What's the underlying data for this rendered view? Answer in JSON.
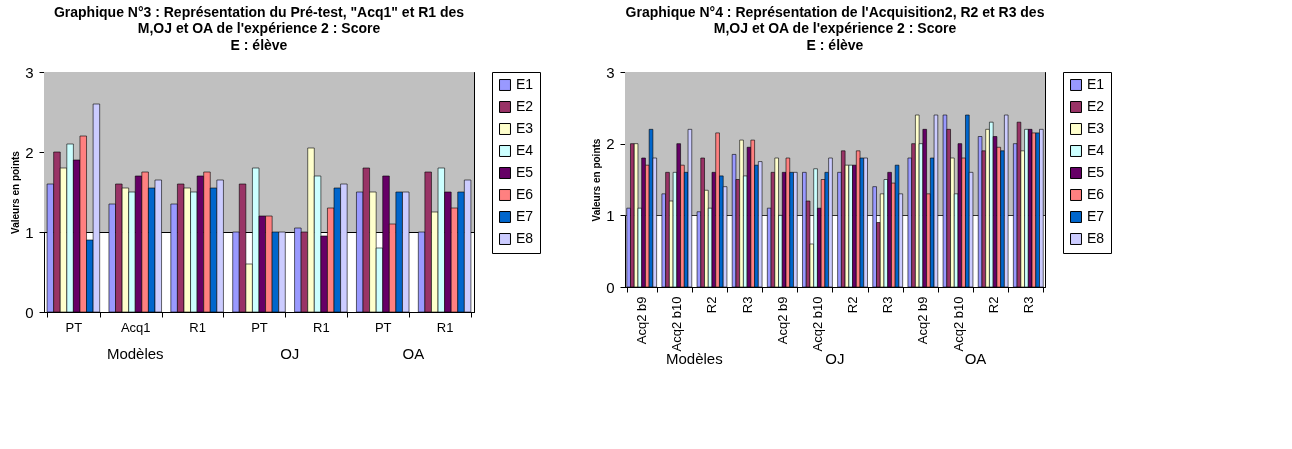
{
  "chart_data": [
    {
      "type": "bar",
      "title": "Graphique N°3 : Représentation du Pré-test, \"Acq1\" et R1 des M,OJ et OA de l'expérience 2 : Score",
      "subtitle": "E : élève",
      "ylabel": "Valeurs en points",
      "categories": [
        "PT",
        "Acq1",
        "R1",
        "PT",
        "R1",
        "PT",
        "R1"
      ],
      "annotations": [
        "Modèles",
        "OJ",
        "OA"
      ],
      "series": [
        {
          "name": "E1",
          "color": "#9999ff",
          "values": [
            1.6,
            1.35,
            1.35,
            1.0,
            1.05,
            1.5,
            1.0
          ]
        },
        {
          "name": "E2",
          "color": "#993366",
          "values": [
            2.0,
            1.6,
            1.6,
            1.6,
            1.0,
            1.8,
            1.75
          ]
        },
        {
          "name": "E3",
          "color": "#ffffcc",
          "values": [
            1.8,
            1.55,
            1.55,
            0.6,
            2.05,
            1.5,
            1.25
          ]
        },
        {
          "name": "E4",
          "color": "#ccffff",
          "values": [
            2.1,
            1.5,
            1.5,
            1.8,
            1.7,
            0.8,
            1.8
          ]
        },
        {
          "name": "E5",
          "color": "#660066",
          "values": [
            1.9,
            1.7,
            1.7,
            1.2,
            0.95,
            1.7,
            1.5
          ]
        },
        {
          "name": "E6",
          "color": "#ff8080",
          "values": [
            2.2,
            1.75,
            1.75,
            1.2,
            1.3,
            1.1,
            1.3
          ]
        },
        {
          "name": "E7",
          "color": "#0066cc",
          "values": [
            0.9,
            1.55,
            1.55,
            1.0,
            1.55,
            1.5,
            1.5
          ]
        },
        {
          "name": "E8",
          "color": "#ccccff",
          "values": [
            2.6,
            1.65,
            1.65,
            1.0,
            1.6,
            1.5,
            1.65
          ]
        }
      ],
      "ylim": [
        0,
        3
      ],
      "yticks": [
        0,
        1,
        2,
        3
      ],
      "grid": "y",
      "legend": "right",
      "bands": [
        {
          "axis": "y",
          "from": 1,
          "to": 3,
          "color": "#c0c0c0"
        }
      ]
    },
    {
      "type": "bar",
      "title": "Graphique N°4 : Représentation de l'Acquisition2, R2 et R3 des M,OJ et OA de l'expérience 2 : Score",
      "subtitle": "E : élève",
      "ylabel": "Valeurs en points",
      "categories": [
        "Acq2 b9",
        "Acq2 b10",
        "R2",
        "R3",
        "Acq2 b9",
        "Acq2 b10",
        "R2",
        "R3",
        "Acq2 b9",
        "Acq2 b10",
        "R2",
        "R3"
      ],
      "annotations": [
        "Modèles",
        "OJ",
        "OA"
      ],
      "series": [
        {
          "name": "E1",
          "color": "#9999ff",
          "values": [
            1.1,
            1.3,
            1.05,
            1.85,
            1.1,
            1.6,
            1.6,
            1.4,
            1.8,
            2.4,
            2.1,
            2.0
          ]
        },
        {
          "name": "E2",
          "color": "#993366",
          "values": [
            2.0,
            1.6,
            1.8,
            1.5,
            1.6,
            1.2,
            1.9,
            0.9,
            2.0,
            2.2,
            1.9,
            2.3
          ]
        },
        {
          "name": "E3",
          "color": "#ffffcc",
          "values": [
            2.0,
            1.2,
            1.35,
            2.05,
            1.8,
            0.6,
            1.7,
            1.3,
            2.4,
            1.8,
            2.2,
            1.9
          ]
        },
        {
          "name": "E4",
          "color": "#ccffff",
          "values": [
            1.1,
            1.6,
            1.1,
            1.55,
            1.0,
            1.65,
            1.7,
            1.5,
            2.0,
            1.3,
            2.3,
            2.2
          ]
        },
        {
          "name": "E5",
          "color": "#660066",
          "values": [
            1.8,
            2.0,
            1.6,
            1.95,
            1.6,
            1.1,
            1.7,
            1.6,
            2.2,
            2.0,
            2.1,
            2.2
          ]
        },
        {
          "name": "E6",
          "color": "#ff8080",
          "values": [
            1.7,
            1.7,
            2.15,
            2.05,
            1.8,
            1.5,
            1.9,
            1.45,
            1.3,
            1.8,
            1.95,
            2.15
          ]
        },
        {
          "name": "E7",
          "color": "#0066cc",
          "values": [
            2.2,
            1.6,
            1.55,
            1.7,
            1.6,
            1.6,
            1.8,
            1.7,
            1.8,
            2.4,
            1.9,
            2.15
          ]
        },
        {
          "name": "E8",
          "color": "#ccccff",
          "values": [
            1.8,
            2.2,
            1.4,
            1.75,
            1.6,
            1.8,
            1.8,
            1.3,
            2.4,
            1.6,
            2.4,
            2.2
          ]
        }
      ],
      "ylim": [
        0,
        3
      ],
      "yticks": [
        0,
        1,
        2,
        3
      ],
      "grid": "y",
      "legend": "right",
      "bands": [
        {
          "axis": "y",
          "from": 1,
          "to": 3,
          "color": "#c0c0c0"
        }
      ]
    }
  ]
}
